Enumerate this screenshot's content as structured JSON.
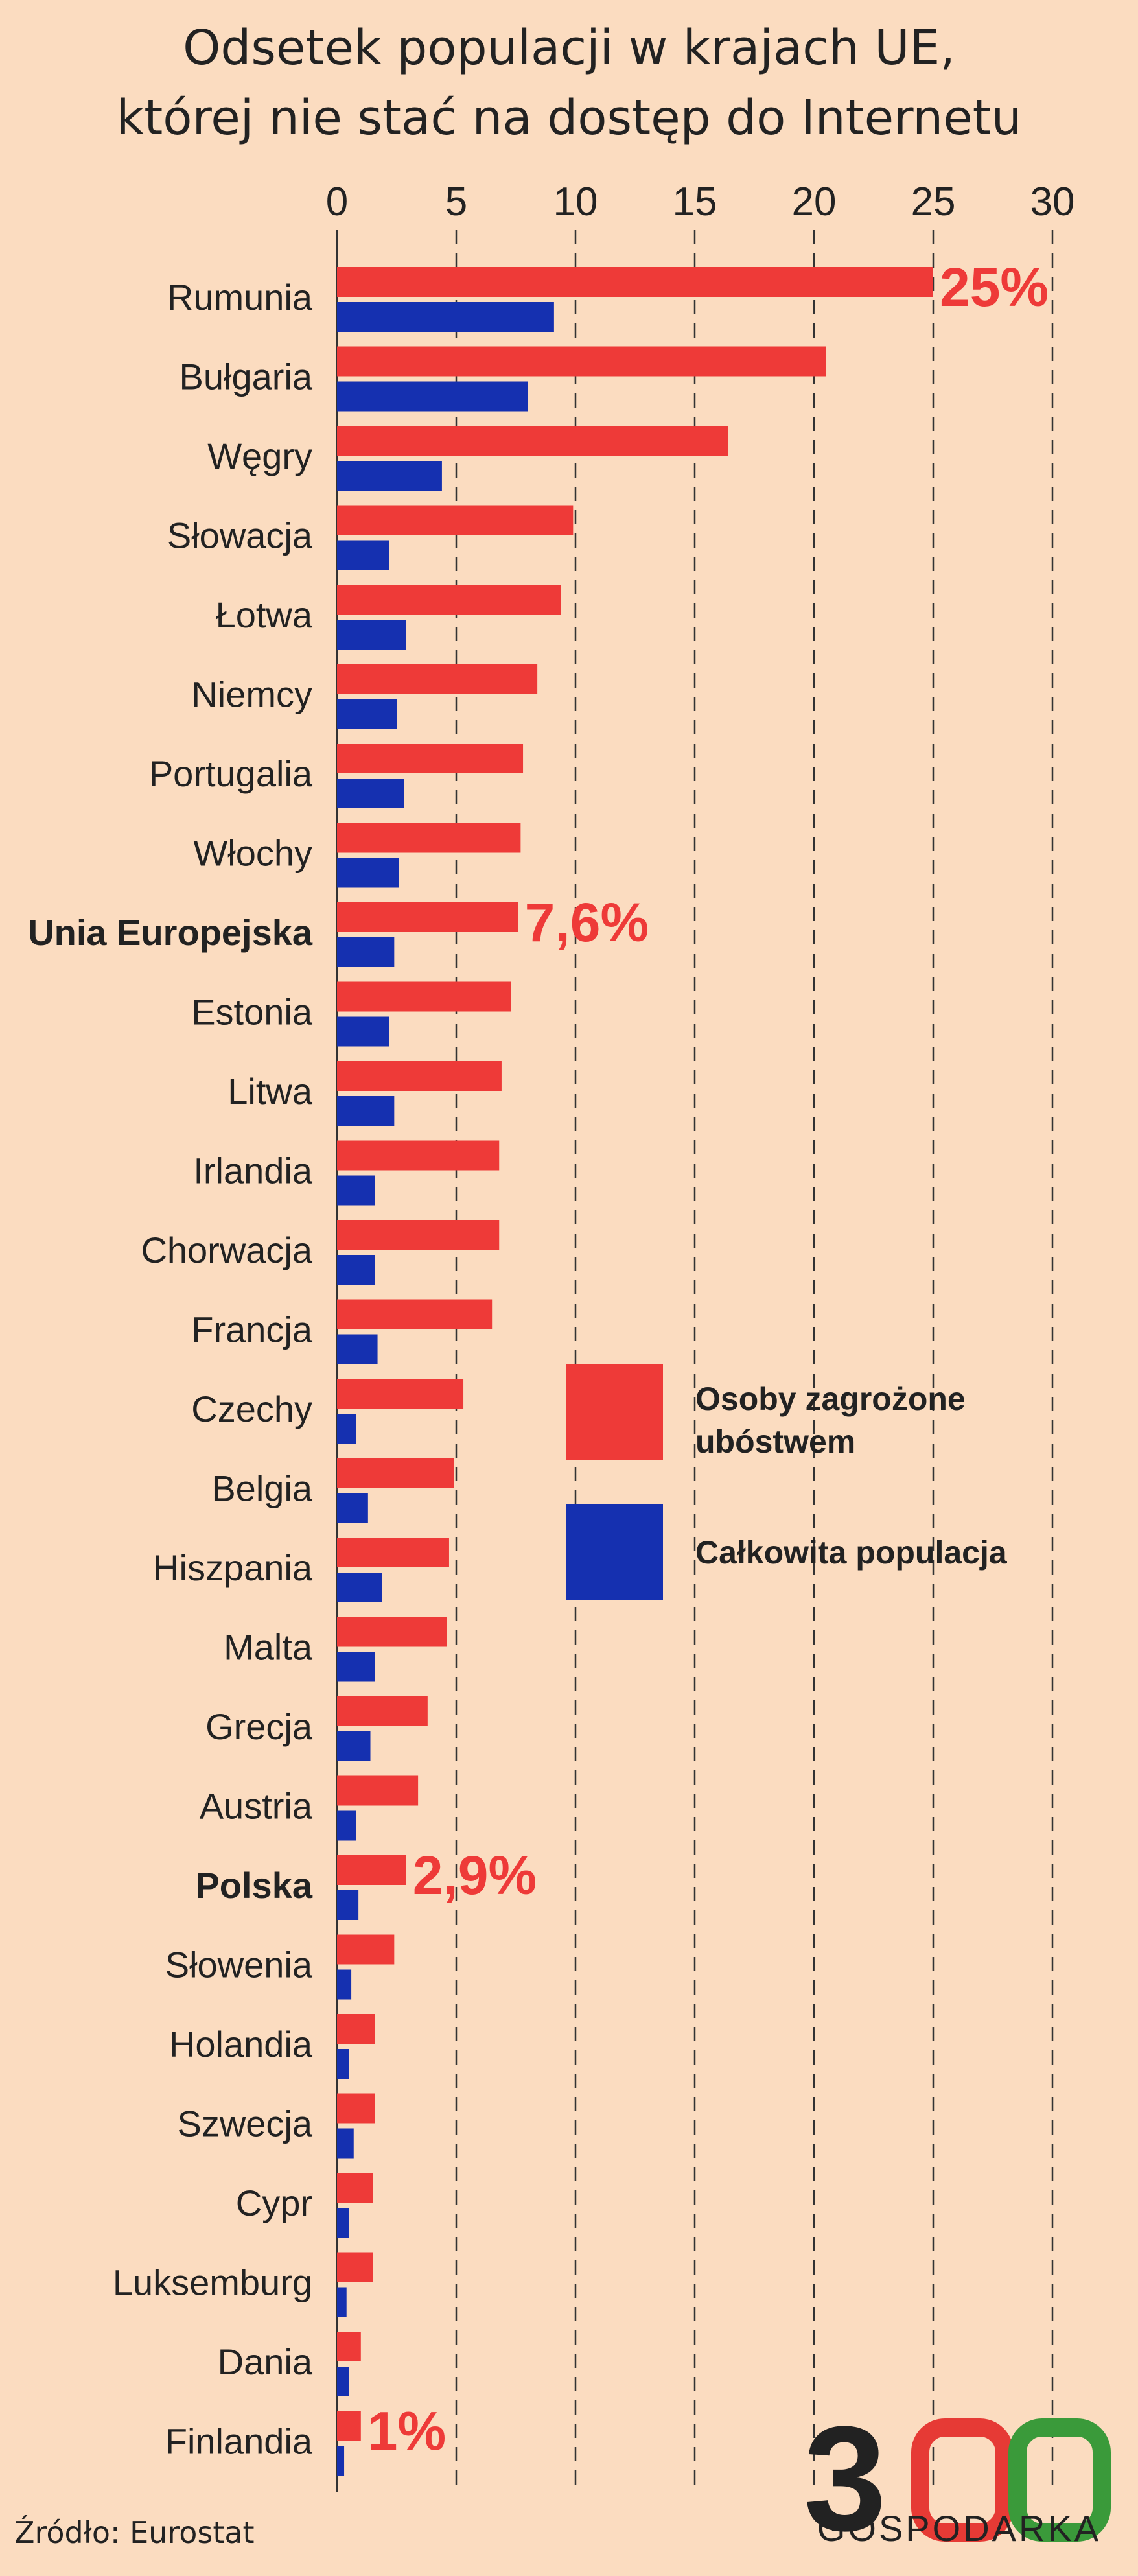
{
  "header": {
    "title_line1": "Odsetek populacji w krajach UE,",
    "title_line2": "której nie stać na dostęp do Internetu"
  },
  "source": "Źródło: Eurostat",
  "logo": {
    "number": "300",
    "text": "GOSPODARKA",
    "colors": {
      "three": "#222222",
      "zero1": "#e63a35",
      "zero2": "#3a9a3a"
    }
  },
  "colors": {
    "background": "#fbdcc0",
    "poverty": "#ee3a38",
    "total": "#1530b0",
    "text": "#222222",
    "grid": "#333333"
  },
  "chart_data": {
    "type": "bar",
    "orientation": "horizontal",
    "title": "Odsetek populacji w krajach UE, której nie stać na dostęp do Internetu",
    "xlim": [
      0,
      30
    ],
    "x_ticks": [
      0,
      5,
      10,
      15,
      20,
      25,
      30
    ],
    "x_axis_position": "top",
    "grid": "vertical dashed",
    "legend_position": "center-right",
    "categories": [
      "Rumunia",
      "Bułgaria",
      "Węgry",
      "Słowacja",
      "Łotwa",
      "Niemcy",
      "Portugalia",
      "Włochy",
      "Unia Europejska",
      "Estonia",
      "Litwa",
      "Irlandia",
      "Chorwacja",
      "Francja",
      "Czechy",
      "Belgia",
      "Hiszpania",
      "Malta",
      "Grecja",
      "Austria",
      "Polska",
      "Słowenia",
      "Holandia",
      "Szwecja",
      "Cypr",
      "Luksemburg",
      "Dania",
      "Finlandia"
    ],
    "bold_categories": [
      "Unia Europejska",
      "Polska"
    ],
    "series": [
      {
        "name": "Osoby zagrożone ubóstwem",
        "values": [
          25,
          20.5,
          16.4,
          9.9,
          9.4,
          8.4,
          7.8,
          7.7,
          7.6,
          7.3,
          6.9,
          6.8,
          6.8,
          6.5,
          5.3,
          4.9,
          4.7,
          4.6,
          3.8,
          3.4,
          2.9,
          2.4,
          1.6,
          1.6,
          1.5,
          1.5,
          1.0,
          1.0
        ]
      },
      {
        "name": "Całkowita populacja",
        "values": [
          9.1,
          8.0,
          4.4,
          2.2,
          2.9,
          2.5,
          2.8,
          2.6,
          2.4,
          2.2,
          2.4,
          1.6,
          1.6,
          1.7,
          0.8,
          1.3,
          1.9,
          1.6,
          1.4,
          0.8,
          0.9,
          0.6,
          0.5,
          0.7,
          0.5,
          0.4,
          0.5,
          0.3
        ]
      }
    ],
    "annotations": [
      {
        "category": "Rumunia",
        "label": "25%"
      },
      {
        "category": "Unia Europejska",
        "label": "7,6%"
      },
      {
        "category": "Polska",
        "label": "2,9%"
      },
      {
        "category": "Finlandia",
        "label": "1%"
      }
    ]
  }
}
